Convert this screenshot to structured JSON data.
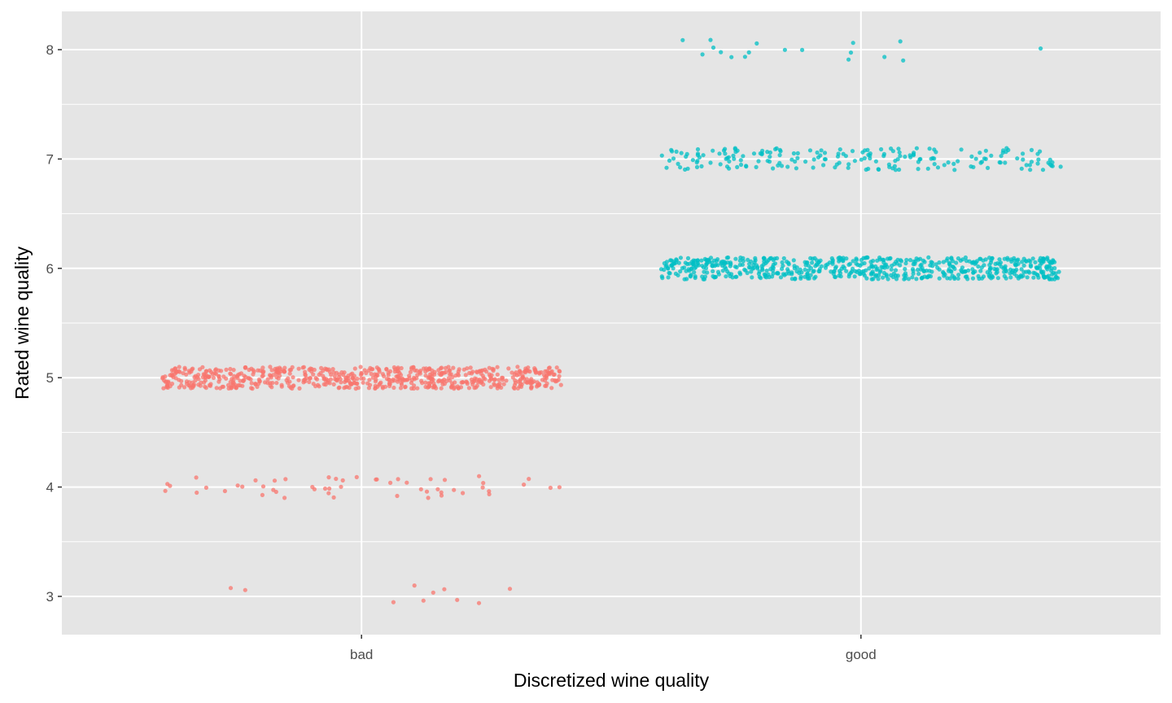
{
  "chart_data": {
    "type": "scatter",
    "geom": "jitter",
    "title": "",
    "xlabel": "Discretized wine quality",
    "ylabel": "Rated wine quality",
    "categories": [
      "bad",
      "good"
    ],
    "y_ticks": [
      "3",
      "4",
      "5",
      "6",
      "7",
      "8"
    ],
    "ylim": [
      2.65,
      8.35
    ],
    "grid": true,
    "legend": "none",
    "panel_background": "#E5E5E5",
    "grid_color": "#FFFFFF",
    "series": [
      {
        "category": "bad",
        "color": "#F8766D",
        "counts": {
          "3": 10,
          "4": 53,
          "5": 681
        }
      },
      {
        "category": "good",
        "color": "#00BFC4",
        "counts": {
          "6": 638,
          "7": 199,
          "8": 18
        }
      }
    ],
    "jitter": {
      "width": 0.4,
      "height": 0.1
    }
  }
}
